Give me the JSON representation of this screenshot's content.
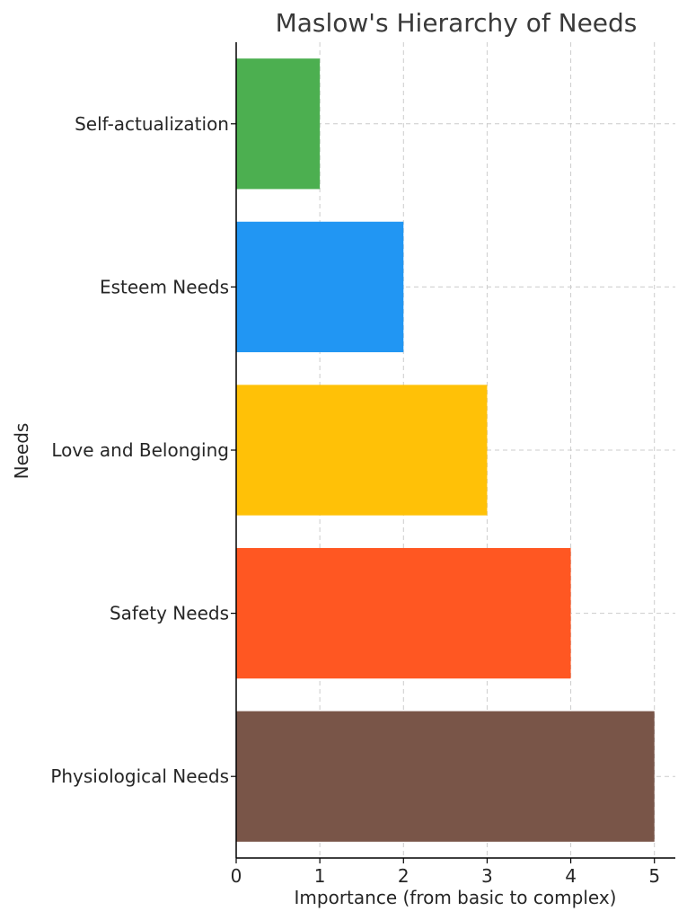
{
  "chart_data": {
    "type": "bar",
    "orientation": "horizontal",
    "title": "Maslow's Hierarchy of Needs",
    "xlabel": "Importance (from basic to complex)",
    "ylabel": "Needs",
    "categories": [
      "Physiological Needs",
      "Safety Needs",
      "Love and Belonging",
      "Esteem Needs",
      "Self-actualization"
    ],
    "values": [
      5,
      4,
      3,
      2,
      1
    ],
    "colors": [
      "#795548",
      "#FF5722",
      "#FFC107",
      "#2196F3",
      "#4CAF50"
    ],
    "xlim": [
      0,
      5.25
    ],
    "xticks": [
      0,
      1,
      2,
      3,
      4,
      5
    ],
    "grid": true
  }
}
